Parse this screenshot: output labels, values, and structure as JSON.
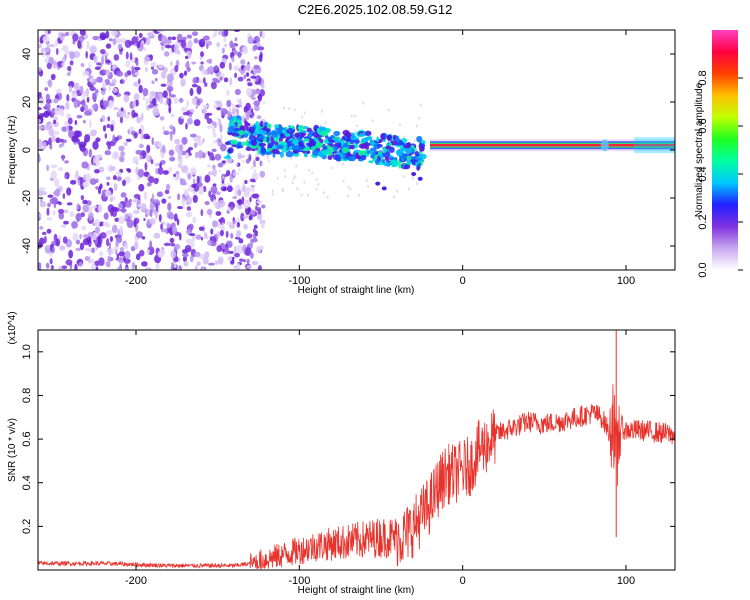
{
  "title": "C2E6.2025.102.08.59.G12",
  "chart_data": [
    {
      "type": "heatmap",
      "xlabel": "Height of straight line (km)",
      "ylabel": "Frequency (Hz)",
      "xlim": [
        -260,
        130
      ],
      "ylim": [
        -50,
        50
      ],
      "xticks": [
        -200,
        -100,
        0,
        100
      ],
      "yticks": [
        -40,
        -20,
        0,
        20,
        40
      ],
      "colorbar": {
        "label": "Normalized spectral amplitude",
        "ticks": [
          "0.0",
          "0.2",
          "0.4",
          "0.6",
          "0.8"
        ],
        "colors": [
          "#ffffff",
          "#c8a8f0",
          "#8030e0",
          "#2020ff",
          "#00c8ff",
          "#00ffa0",
          "#20ff20",
          "#c0ff00",
          "#ffc000",
          "#ff4000",
          "#ff0040",
          "#ff40c0"
        ]
      },
      "features": {
        "noise_region_x": [
          -260,
          -122
        ],
        "main_band": [
          {
            "x": -142,
            "f": 8
          },
          {
            "x": -130,
            "f": 6
          },
          {
            "x": -115,
            "f": 4
          },
          {
            "x": -100,
            "f": 4
          },
          {
            "x": -85,
            "f": 3
          },
          {
            "x": -70,
            "f": 2
          },
          {
            "x": -55,
            "f": 1
          },
          {
            "x": -40,
            "f": -1
          },
          {
            "x": -28,
            "f": -2
          },
          {
            "x": -20,
            "f": 1
          },
          {
            "x": 0,
            "f": 2
          },
          {
            "x": 50,
            "f": 2
          },
          {
            "x": 90,
            "f": 2
          },
          {
            "x": 130,
            "f": 2
          }
        ]
      },
      "grid": false
    },
    {
      "type": "line",
      "xlabel": "Height of straight line (km)",
      "ylabel": "SNR (10 * v/v)",
      "multiplier": "(x10^4)",
      "xlim": [
        -260,
        130
      ],
      "ylim": [
        0,
        1.1
      ],
      "xticks": [
        -200,
        -100,
        0,
        100
      ],
      "yticks": [
        "0.2",
        "0.4",
        "0.6",
        "0.8",
        "1.0"
      ],
      "color": "#e8322c",
      "series": [
        {
          "x": [
            -260,
            -240,
            -220,
            -200,
            -180,
            -160,
            -140,
            -130,
            -120,
            -110,
            -100,
            -90,
            -80,
            -70,
            -60,
            -50,
            -40,
            -35,
            -30,
            -25,
            -20,
            -15,
            -10,
            -5,
            0,
            5,
            10,
            15,
            20,
            30,
            40,
            50,
            60,
            70,
            80,
            85,
            88,
            90,
            92,
            94,
            96,
            98,
            100,
            110,
            120,
            130
          ],
          "y": [
            0.03,
            0.03,
            0.03,
            0.025,
            0.02,
            0.02,
            0.02,
            0.03,
            0.05,
            0.07,
            0.09,
            0.11,
            0.12,
            0.13,
            0.14,
            0.15,
            0.15,
            0.16,
            0.2,
            0.25,
            0.3,
            0.38,
            0.44,
            0.44,
            0.46,
            0.48,
            0.55,
            0.58,
            0.62,
            0.65,
            0.68,
            0.67,
            0.68,
            0.7,
            0.72,
            0.7,
            0.66,
            0.62,
            0.75,
            0.45,
            0.68,
            0.65,
            0.64,
            0.64,
            0.63,
            0.62
          ]
        }
      ],
      "grid": false
    }
  ]
}
